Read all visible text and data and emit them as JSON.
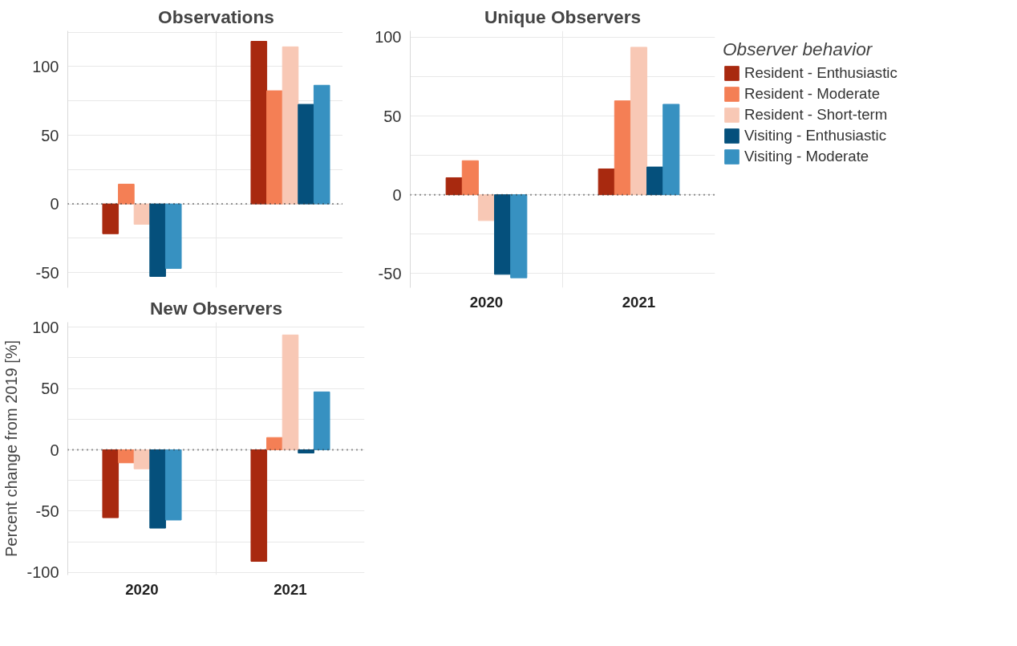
{
  "chart_data": [
    {
      "type": "bar",
      "title": "Observations",
      "categories": [
        "2020",
        "2021"
      ],
      "tick_labels": "y",
      "grid": true,
      "ylim": [
        -61,
        126
      ],
      "yticks": [
        {
          "value": -50,
          "label": "-50"
        },
        {
          "value": -25,
          "label": null
        },
        0,
        {
          "value": 25,
          "label": null
        },
        50,
        {
          "value": 75,
          "label": null
        },
        100,
        {
          "value": 125,
          "label": null
        }
      ],
      "ref_lines": [
        {
          "axis": "y",
          "value": 0,
          "line_style": "dotted",
          "color": "#333333"
        }
      ],
      "series": [
        {
          "color": "#a8290f",
          "values": [
            -21.7,
            118.4
          ]
        },
        {
          "color": "#f47f55",
          "values": [
            14.4,
            82.4
          ]
        },
        {
          "color": "#f8c8b5",
          "values": [
            -14.8,
            114.4
          ]
        },
        {
          "color": "#05507c",
          "values": [
            -52.8,
            72.5
          ]
        },
        {
          "color": "#3791c1",
          "values": [
            -47,
            86.4
          ]
        }
      ]
    },
    {
      "type": "bar",
      "title": "Unique Observers",
      "categories": [
        "2020",
        "2021"
      ],
      "grid": true,
      "ylim": [
        -59,
        104
      ],
      "legend": "right",
      "legend_title": "Observer behavior",
      "yticks": [
        {
          "value": -50,
          "label": "-50"
        },
        {
          "value": -25,
          "label": null
        },
        0,
        {
          "value": 25,
          "label": null
        },
        50,
        {
          "value": 75,
          "label": null
        },
        100
      ],
      "ref_lines": [
        {
          "axis": "y",
          "value": 0,
          "line_style": "dotted",
          "color": "#333333"
        }
      ],
      "series": [
        {
          "name": "Resident - Enthusiastic",
          "color": "#a8290f",
          "values": [
            10.8,
            16.4
          ]
        },
        {
          "name": "Resident - Moderate",
          "color": "#f47f55",
          "values": [
            21.6,
            59.6
          ]
        },
        {
          "name": "Resident - Short-term",
          "color": "#f8c8b5",
          "values": [
            -16.4,
            93.6
          ]
        },
        {
          "name": "Visiting - Enthusiastic",
          "color": "#05507c",
          "values": [
            -50.5,
            17.6
          ]
        },
        {
          "name": "Visiting - Moderate",
          "color": "#3791c1",
          "values": [
            -52.7,
            57.4
          ]
        }
      ]
    },
    {
      "type": "bar",
      "title": "New Observers",
      "categories": [
        "2020",
        "2021"
      ],
      "grid": true,
      "ylim": [
        -102,
        104
      ],
      "ylabel": "Percent change from 2019 [%]",
      "yticks": [
        {
          "value": -100,
          "label": "-100"
        },
        {
          "value": -75,
          "label": null
        },
        {
          "value": -50,
          "label": "-50"
        },
        {
          "value": -25,
          "label": null
        },
        0,
        {
          "value": 25,
          "label": null
        },
        50,
        {
          "value": 75,
          "label": null
        },
        100
      ],
      "ref_lines": [
        {
          "axis": "y",
          "value": 0,
          "line_style": "dotted",
          "color": "#333333"
        }
      ],
      "series": [
        {
          "color": "#a8290f",
          "values": [
            -55.3,
            -90.9
          ]
        },
        {
          "color": "#f47f55",
          "values": [
            -10.6,
            10
          ]
        },
        {
          "color": "#f8c8b5",
          "values": [
            -15.5,
            93.6
          ]
        },
        {
          "color": "#05507c",
          "values": [
            -63.8,
            -2.6
          ]
        },
        {
          "color": "#3791c1",
          "values": [
            -57.2,
            47.2
          ]
        }
      ]
    }
  ]
}
